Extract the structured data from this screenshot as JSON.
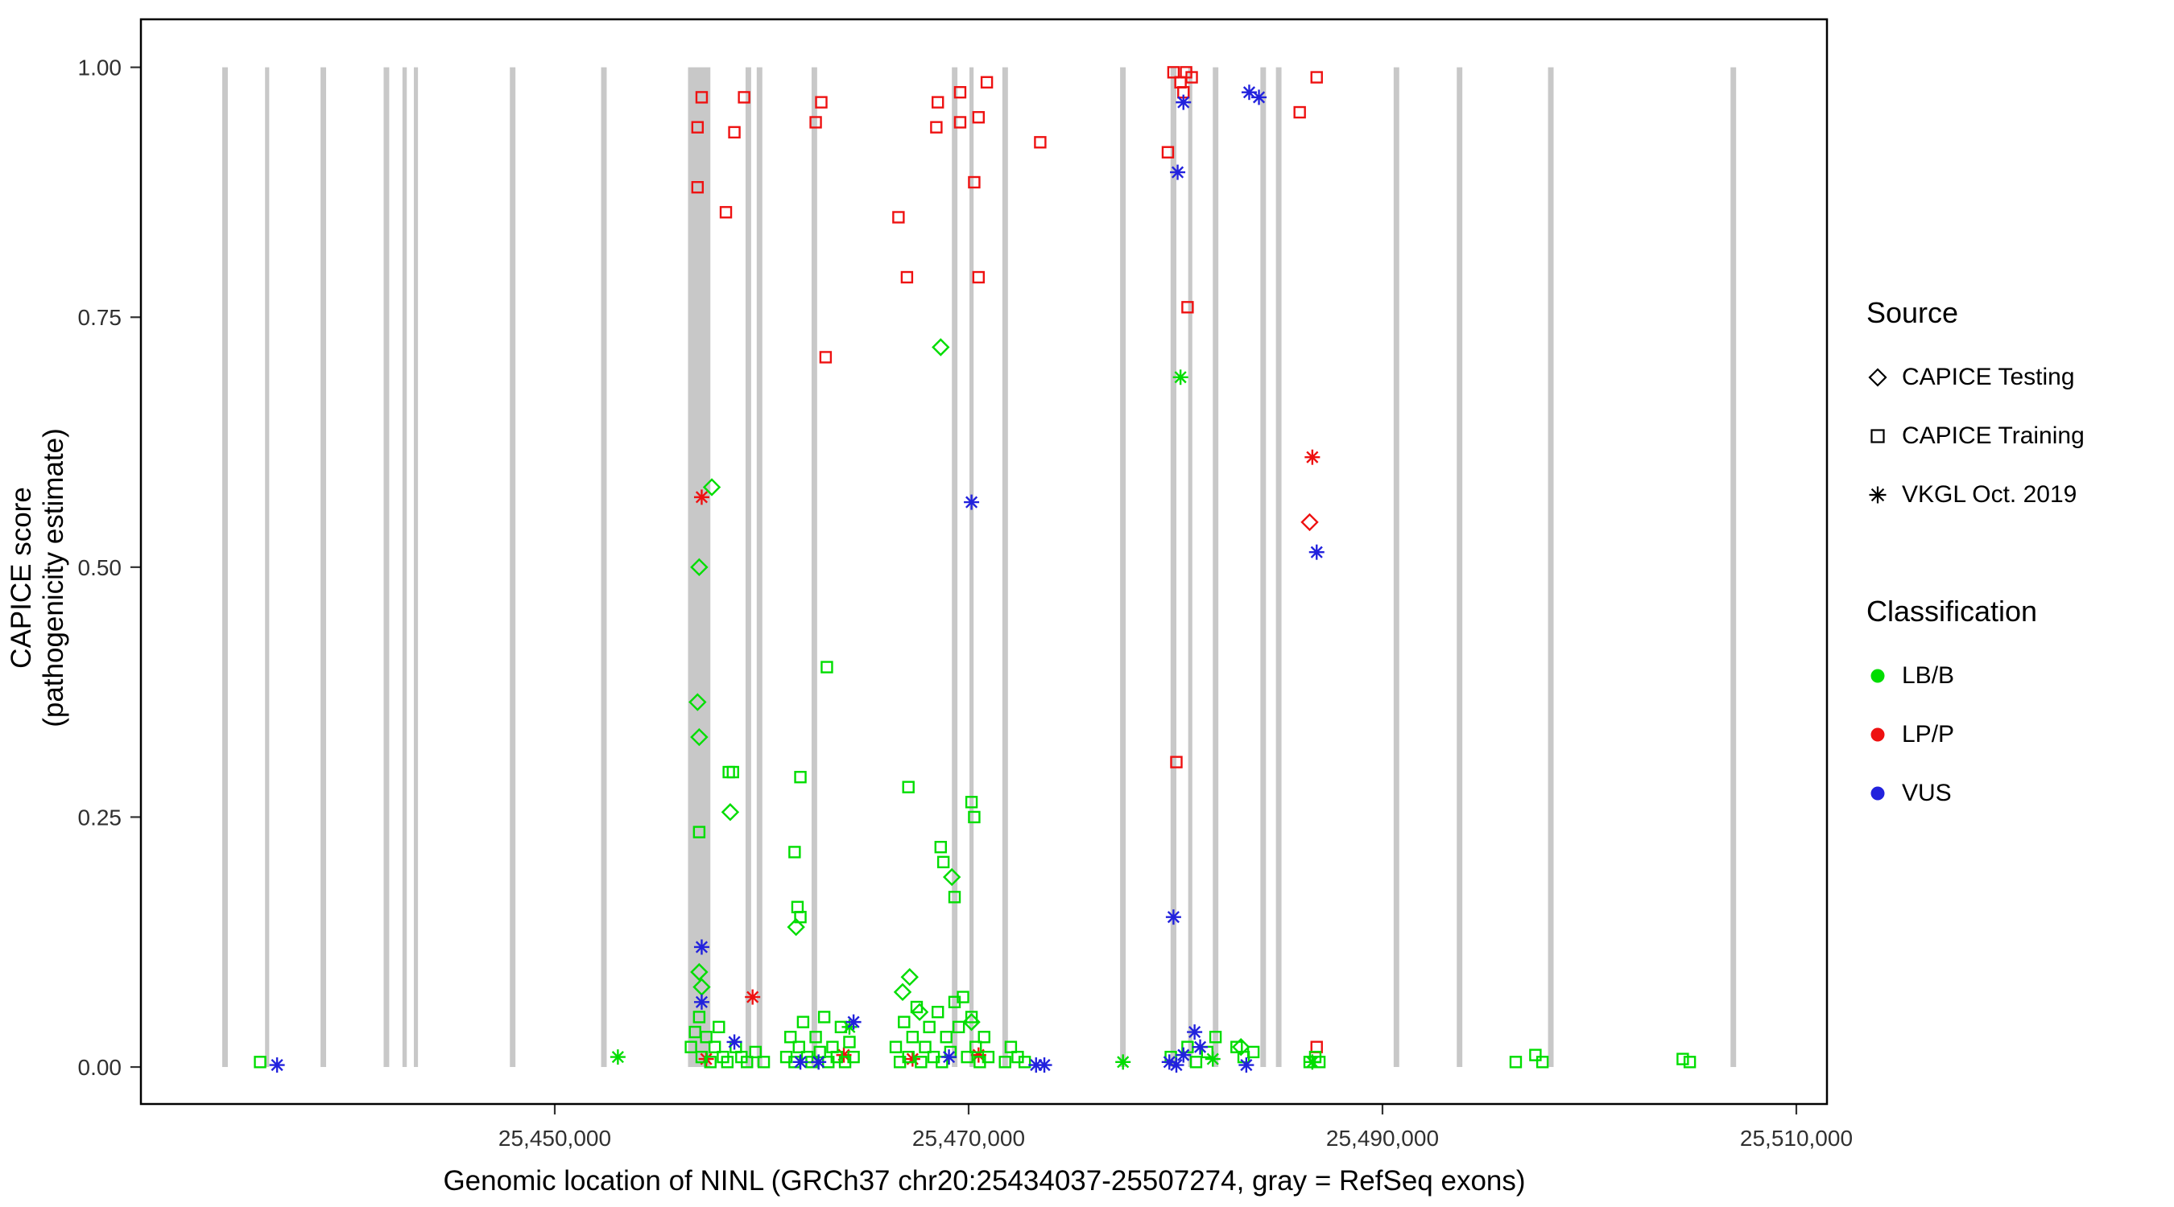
{
  "legend": {
    "source": {
      "title": "Source",
      "items": [
        {
          "label": "CAPICE Testing",
          "shape": "diamond"
        },
        {
          "label": "CAPICE Training",
          "shape": "square"
        },
        {
          "label": "VKGL Oct. 2019",
          "shape": "asterisk"
        }
      ]
    },
    "classification": {
      "title": "Classification",
      "items": [
        {
          "label": "LB/B",
          "color": "#00DD00"
        },
        {
          "label": "LP/P",
          "color": "#EE1111"
        },
        {
          "label": "VUS",
          "color": "#2222DD"
        }
      ]
    }
  },
  "chart_data": {
    "type": "scatter",
    "title": "",
    "xlabel": "Genomic location of NINL (GRCh37 chr20:25434037-25507274, gray = RefSeq exons)",
    "ylabel": "CAPICE score (pathogenicity estimate)",
    "grid": false,
    "legend_position": "right",
    "xlim": [
      25430000,
      25511480
    ],
    "ylim": [
      -0.037,
      1.048
    ],
    "x_ticks": [
      {
        "value": 25450000,
        "label": "25,450,000"
      },
      {
        "value": 25470000,
        "label": "25,470,000"
      },
      {
        "value": 25490000,
        "label": "25,490,000"
      },
      {
        "value": 25510000,
        "label": "25,510,000"
      }
    ],
    "y_ticks": [
      {
        "value": 0.0,
        "label": "0.00"
      },
      {
        "value": 0.25,
        "label": "0.25"
      },
      {
        "value": 0.5,
        "label": "0.50"
      },
      {
        "value": 0.75,
        "label": "0.75"
      },
      {
        "value": 1.0,
        "label": "1.00"
      }
    ],
    "colors": {
      "LB/B": "#00DD00",
      "LP/P": "#EE1111",
      "VUS": "#2222DD",
      "exon": "#C8C8C8"
    },
    "exon_note": "gray vertical bars = RefSeq exons, drawn from score 0 to 1",
    "exons": [
      [
        25433930,
        25434200
      ],
      [
        25436000,
        25436200
      ],
      [
        25438680,
        25438950
      ],
      [
        25441730,
        25442000
      ],
      [
        25442640,
        25442850
      ],
      [
        25443190,
        25443390
      ],
      [
        25447830,
        25448100
      ],
      [
        25452240,
        25452510
      ],
      [
        25456440,
        25457520
      ],
      [
        25459220,
        25459490
      ],
      [
        25459760,
        25460030
      ],
      [
        25462410,
        25462680
      ],
      [
        25469190,
        25469460
      ],
      [
        25470040,
        25470240
      ],
      [
        25471630,
        25471900
      ],
      [
        25477320,
        25477590
      ],
      [
        25479760,
        25480040
      ],
      [
        25480610,
        25480810
      ],
      [
        25481800,
        25482070
      ],
      [
        25484100,
        25484370
      ],
      [
        25484850,
        25485120
      ],
      [
        25490540,
        25490810
      ],
      [
        25493590,
        25493860
      ],
      [
        25498000,
        25498270
      ],
      [
        25506820,
        25507090
      ]
    ],
    "series": [
      {
        "name": "CAPICE Training / LP/P",
        "source": "CAPICE Training",
        "classification": "LP/P",
        "shape": "square",
        "points": [
          [
            25456900,
            0.94
          ],
          [
            25457100,
            0.97
          ],
          [
            25456900,
            0.88
          ],
          [
            25458270,
            0.855
          ],
          [
            25458680,
            0.935
          ],
          [
            25459150,
            0.97
          ],
          [
            25462610,
            0.945
          ],
          [
            25462880,
            0.965
          ],
          [
            25463090,
            0.71
          ],
          [
            25466610,
            0.85
          ],
          [
            25467020,
            0.79
          ],
          [
            25468440,
            0.94
          ],
          [
            25468510,
            0.965
          ],
          [
            25469590,
            0.975
          ],
          [
            25469590,
            0.945
          ],
          [
            25470480,
            0.95
          ],
          [
            25470880,
            0.985
          ],
          [
            25470270,
            0.885
          ],
          [
            25470480,
            0.79
          ],
          [
            25473460,
            0.925
          ],
          [
            25479630,
            0.915
          ],
          [
            25479900,
            0.995
          ],
          [
            25480240,
            0.985
          ],
          [
            25480510,
            0.995
          ],
          [
            25480780,
            0.99
          ],
          [
            25480380,
            0.975
          ],
          [
            25480580,
            0.76
          ],
          [
            25480040,
            0.305
          ],
          [
            25486000,
            0.955
          ],
          [
            25486820,
            0.99
          ],
          [
            25486820,
            0.02
          ]
        ]
      },
      {
        "name": "CAPICE Testing / LP/P",
        "source": "CAPICE Testing",
        "classification": "LP/P",
        "shape": "diamond",
        "points": [
          [
            25486480,
            0.545
          ]
        ]
      },
      {
        "name": "VKGL Oct. 2019 / LP/P",
        "source": "VKGL Oct. 2019",
        "classification": "LP/P",
        "shape": "asterisk",
        "points": [
          [
            25457100,
            0.57
          ],
          [
            25459560,
            0.07
          ],
          [
            25457320,
            0.008
          ],
          [
            25463970,
            0.012
          ],
          [
            25467290,
            0.008
          ],
          [
            25470480,
            0.012
          ],
          [
            25486610,
            0.61
          ]
        ]
      },
      {
        "name": "CAPICE Testing / LB/B",
        "source": "CAPICE Testing",
        "classification": "LB/B",
        "shape": "diamond",
        "points": [
          [
            25457590,
            0.58
          ],
          [
            25456980,
            0.5
          ],
          [
            25456900,
            0.365
          ],
          [
            25456980,
            0.33
          ],
          [
            25458480,
            0.255
          ],
          [
            25468650,
            0.72
          ],
          [
            25469190,
            0.19
          ],
          [
            25467150,
            0.09
          ],
          [
            25466810,
            0.075
          ],
          [
            25456980,
            0.095
          ],
          [
            25457100,
            0.08
          ],
          [
            25461660,
            0.14
          ],
          [
            25470140,
            0.045
          ],
          [
            25483160,
            0.02
          ],
          [
            25467630,
            0.055
          ]
        ]
      },
      {
        "name": "CAPICE Training / LB/B",
        "source": "CAPICE Training",
        "classification": "LB/B",
        "shape": "square",
        "points": [
          [
            25435760,
            0.005
          ],
          [
            25458410,
            0.295
          ],
          [
            25458610,
            0.295
          ],
          [
            25456980,
            0.235
          ],
          [
            25461870,
            0.29
          ],
          [
            25463150,
            0.4
          ],
          [
            25461590,
            0.215
          ],
          [
            25461730,
            0.16
          ],
          [
            25461870,
            0.15
          ],
          [
            25467090,
            0.28
          ],
          [
            25468650,
            0.22
          ],
          [
            25468780,
            0.205
          ],
          [
            25469320,
            0.17
          ],
          [
            25470140,
            0.265
          ],
          [
            25470270,
            0.25
          ],
          [
            25456580,
            0.02
          ],
          [
            25456780,
            0.035
          ],
          [
            25456980,
            0.05
          ],
          [
            25457100,
            0.01
          ],
          [
            25457320,
            0.03
          ],
          [
            25457520,
            0.005
          ],
          [
            25457730,
            0.02
          ],
          [
            25457930,
            0.04
          ],
          [
            25458130,
            0.01
          ],
          [
            25458340,
            0.005
          ],
          [
            25458750,
            0.02
          ],
          [
            25459020,
            0.01
          ],
          [
            25459290,
            0.005
          ],
          [
            25459700,
            0.015
          ],
          [
            25460100,
            0.005
          ],
          [
            25461190,
            0.01
          ],
          [
            25461390,
            0.03
          ],
          [
            25461590,
            0.005
          ],
          [
            25461800,
            0.02
          ],
          [
            25462000,
            0.045
          ],
          [
            25462200,
            0.01
          ],
          [
            25462410,
            0.005
          ],
          [
            25462610,
            0.03
          ],
          [
            25462810,
            0.015
          ],
          [
            25463020,
            0.05
          ],
          [
            25463220,
            0.005
          ],
          [
            25463420,
            0.02
          ],
          [
            25463630,
            0.01
          ],
          [
            25463830,
            0.04
          ],
          [
            25464030,
            0.005
          ],
          [
            25464240,
            0.025
          ],
          [
            25464440,
            0.01
          ],
          [
            25466480,
            0.02
          ],
          [
            25466680,
            0.005
          ],
          [
            25466880,
            0.045
          ],
          [
            25467090,
            0.01
          ],
          [
            25467290,
            0.03
          ],
          [
            25467490,
            0.06
          ],
          [
            25467700,
            0.005
          ],
          [
            25467900,
            0.02
          ],
          [
            25468100,
            0.04
          ],
          [
            25468310,
            0.01
          ],
          [
            25468510,
            0.055
          ],
          [
            25468710,
            0.005
          ],
          [
            25468920,
            0.03
          ],
          [
            25469120,
            0.015
          ],
          [
            25469320,
            0.065
          ],
          [
            25469520,
            0.04
          ],
          [
            25469730,
            0.07
          ],
          [
            25469930,
            0.01
          ],
          [
            25470140,
            0.05
          ],
          [
            25470340,
            0.02
          ],
          [
            25470540,
            0.005
          ],
          [
            25470750,
            0.03
          ],
          [
            25470950,
            0.01
          ],
          [
            25471760,
            0.005
          ],
          [
            25472040,
            0.02
          ],
          [
            25472370,
            0.01
          ],
          [
            25472710,
            0.005
          ],
          [
            25479770,
            0.01
          ],
          [
            25480580,
            0.02
          ],
          [
            25480990,
            0.005
          ],
          [
            25481530,
            0.015
          ],
          [
            25481930,
            0.03
          ],
          [
            25482950,
            0.02
          ],
          [
            25483290,
            0.01
          ],
          [
            25483760,
            0.015
          ],
          [
            25486480,
            0.005
          ],
          [
            25486750,
            0.01
          ],
          [
            25486950,
            0.005
          ],
          [
            25496440,
            0.005
          ],
          [
            25497390,
            0.012
          ],
          [
            25497730,
            0.005
          ],
          [
            25504510,
            0.008
          ],
          [
            25504850,
            0.005
          ]
        ]
      },
      {
        "name": "VKGL Oct. 2019 / LB/B",
        "source": "VKGL Oct. 2019",
        "classification": "LB/B",
        "shape": "asterisk",
        "points": [
          [
            25453050,
            0.01
          ],
          [
            25480240,
            0.69
          ],
          [
            25464240,
            0.04
          ],
          [
            25477460,
            0.005
          ],
          [
            25486610,
            0.005
          ],
          [
            25481800,
            0.008
          ]
        ]
      },
      {
        "name": "VKGL Oct. 2019 / VUS",
        "source": "VKGL Oct. 2019",
        "classification": "VUS",
        "shape": "asterisk",
        "points": [
          [
            25436580,
            0.002
          ],
          [
            25457100,
            0.12
          ],
          [
            25457100,
            0.065
          ],
          [
            25458680,
            0.025
          ],
          [
            25461870,
            0.005
          ],
          [
            25462750,
            0.005
          ],
          [
            25464440,
            0.045
          ],
          [
            25469050,
            0.01
          ],
          [
            25470140,
            0.565
          ],
          [
            25473260,
            0.002
          ],
          [
            25473660,
            0.002
          ],
          [
            25479700,
            0.005
          ],
          [
            25480040,
            0.002
          ],
          [
            25480380,
            0.012
          ],
          [
            25480920,
            0.035
          ],
          [
            25481190,
            0.02
          ],
          [
            25479900,
            0.15
          ],
          [
            25480100,
            0.895
          ],
          [
            25480380,
            0.965
          ],
          [
            25483560,
            0.975
          ],
          [
            25484030,
            0.97
          ],
          [
            25483420,
            0.002
          ],
          [
            25486820,
            0.515
          ]
        ]
      }
    ]
  }
}
